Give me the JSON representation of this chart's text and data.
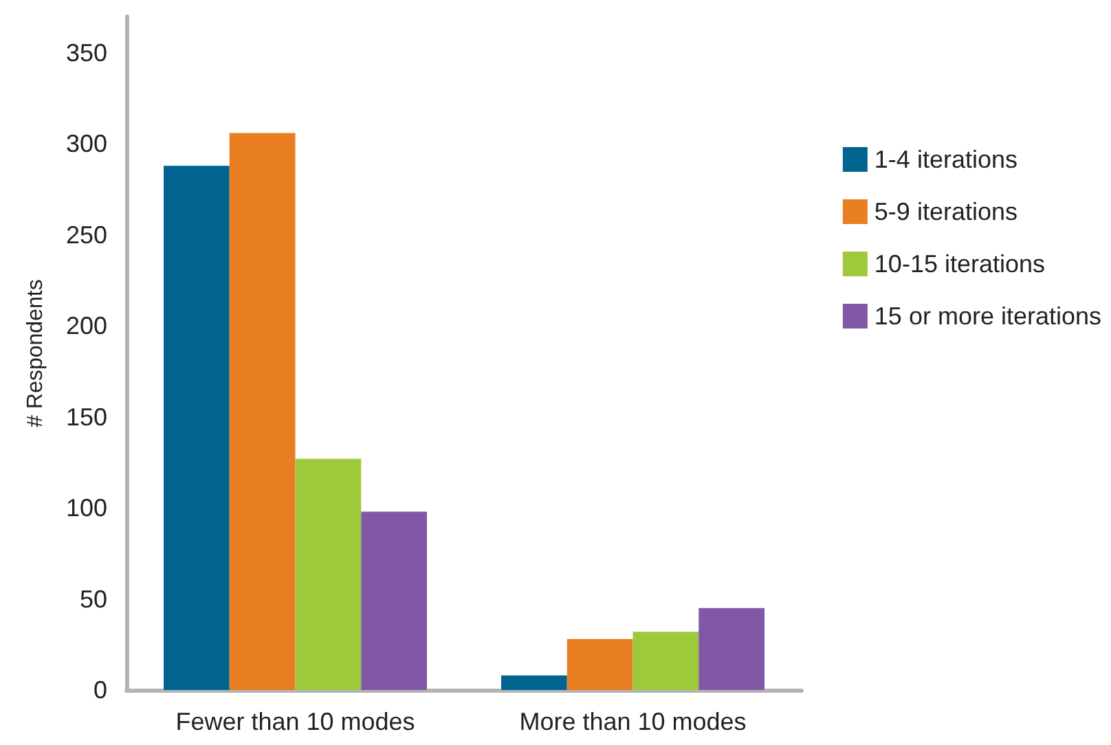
{
  "chart_data": {
    "type": "bar",
    "ylabel": "# Respondents",
    "categories": [
      "Fewer than 10 modes",
      "More than 10 modes"
    ],
    "series": [
      {
        "name": "1-4 iterations",
        "color": "#00648f",
        "values": [
          288,
          8
        ]
      },
      {
        "name": "5-9 iterations",
        "color": "#e97e22",
        "values": [
          306,
          28
        ]
      },
      {
        "name": "10-15 iterations",
        "color": "#9dc93b",
        "values": [
          127,
          32
        ]
      },
      {
        "name": "15 or more iterations",
        "color": "#8058a5",
        "values": [
          98,
          45
        ]
      }
    ],
    "ylim": [
      0,
      370
    ],
    "yticks": [
      0,
      50,
      100,
      150,
      200,
      250,
      300,
      350
    ],
    "grid": false,
    "legend": "right"
  }
}
